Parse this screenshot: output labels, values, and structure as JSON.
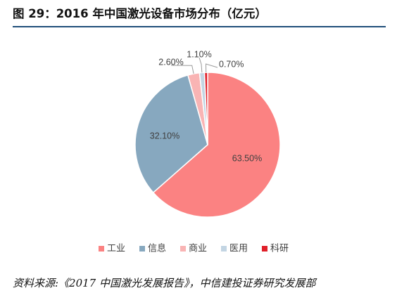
{
  "header": {
    "title": "图 29：2016 年中国激光设备市场分布（亿元）"
  },
  "chart_data": {
    "type": "pie",
    "title": "",
    "slices": [
      {
        "name": "工业",
        "value": 63.5,
        "label": "63.50%",
        "color": "#fb8282"
      },
      {
        "name": "信息",
        "value": 32.1,
        "label": "32.10%",
        "color": "#87a8bf"
      },
      {
        "name": "商业",
        "value": 2.6,
        "label": "2.60%",
        "color": "#f9b4b4"
      },
      {
        "name": "医用",
        "value": 1.1,
        "label": "1.10%",
        "color": "#c3d5e3"
      },
      {
        "name": "科研",
        "value": 0.7,
        "label": "0.70%",
        "color": "#e0202a"
      }
    ],
    "legend_position": "bottom"
  },
  "footer": {
    "source": "资料来源:《2017 中国激光发展报告》，中信建投证券研究发展部"
  }
}
